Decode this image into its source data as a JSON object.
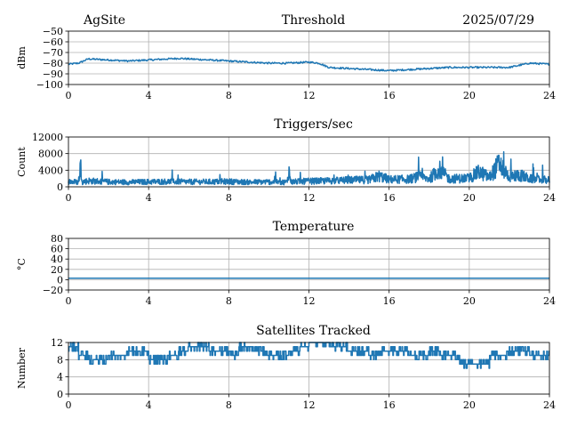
{
  "header": {
    "site": "AgSite",
    "date": "2025/07/29"
  },
  "colors": {
    "line": "#1f77b4",
    "grid": "#b0b0b0"
  },
  "chart_data": [
    {
      "type": "line",
      "title": "Threshold",
      "ylabel": "dBm",
      "xlim": [
        0,
        24
      ],
      "ylim": [
        -100,
        -50
      ],
      "xticks": [
        0,
        4,
        8,
        12,
        16,
        20,
        24
      ],
      "yticks": [
        -100,
        -90,
        -80,
        -70,
        -60,
        -50
      ],
      "ytick_labels": [
        "−100",
        "−90",
        "−80",
        "−70",
        "−60",
        "−50"
      ],
      "grid": true,
      "series": [
        {
          "x": [
            0,
            0.5,
            1,
            2,
            3,
            4,
            5,
            5.5,
            6,
            7,
            8,
            9,
            10,
            11,
            12,
            12.5,
            13,
            14,
            15,
            16,
            17,
            18,
            19,
            20,
            21,
            22,
            23,
            24
          ],
          "y": [
            -81,
            -80,
            -76,
            -77,
            -78,
            -77,
            -76,
            -75.5,
            -76,
            -77,
            -78,
            -79,
            -80,
            -80,
            -79,
            -80,
            -84,
            -85,
            -86,
            -87,
            -86,
            -85,
            -84,
            -84,
            -84,
            -84,
            -80,
            -81
          ]
        }
      ]
    },
    {
      "type": "line",
      "title": "Triggers/sec",
      "ylabel": "Count",
      "xlim": [
        0,
        24
      ],
      "ylim": [
        0,
        12000
      ],
      "xticks": [
        0,
        4,
        8,
        12,
        16,
        20,
        24
      ],
      "yticks": [
        0,
        4000,
        8000,
        12000
      ],
      "ytick_labels": [
        "0",
        "4000",
        "8000",
        "12000"
      ],
      "grid": true,
      "series": [
        {
          "x": [
            0,
            0.5,
            0.6,
            0.7,
            1,
            2,
            3,
            4,
            5,
            6,
            7,
            8,
            9,
            10,
            10.9,
            11,
            11.1,
            12,
            13,
            14,
            15,
            15.5,
            16,
            17,
            17.5,
            18,
            18.5,
            19,
            20,
            20.5,
            21,
            21.5,
            22,
            22.5,
            23,
            24
          ],
          "y": [
            1600,
            1400,
            6500,
            1500,
            1800,
            1500,
            1400,
            1500,
            1600,
            1500,
            1500,
            1600,
            1400,
            1500,
            1400,
            4800,
            1500,
            1700,
            1800,
            2000,
            2100,
            3200,
            2200,
            2300,
            3000,
            2400,
            5200,
            2400,
            2600,
            4500,
            2800,
            7000,
            2900,
            3600,
            2400,
            2000
          ],
          "noise_amplitude": 900
        }
      ]
    },
    {
      "type": "line",
      "title": "Temperature",
      "ylabel": "°C",
      "xlim": [
        0,
        24
      ],
      "ylim": [
        -20,
        80
      ],
      "xticks": [
        0,
        4,
        8,
        12,
        16,
        20,
        24
      ],
      "yticks": [
        -20,
        0,
        20,
        40,
        60,
        80
      ],
      "ytick_labels": [
        "−20",
        "0",
        "20",
        "40",
        "60",
        "80"
      ],
      "grid": true,
      "series": [
        {
          "x": [
            0,
            24
          ],
          "y": [
            3,
            3
          ]
        }
      ]
    },
    {
      "type": "line",
      "title": "Satellites Tracked",
      "ylabel": "Number",
      "xlim": [
        0,
        24
      ],
      "ylim": [
        0,
        12
      ],
      "xticks": [
        0,
        4,
        8,
        12,
        16,
        20,
        24
      ],
      "yticks": [
        0,
        4,
        8,
        12
      ],
      "ytick_labels": [
        "0",
        "4",
        "8",
        "12"
      ],
      "grid": true,
      "series": [
        {
          "x": [
            0,
            0.5,
            1,
            2,
            3,
            4,
            5,
            5.5,
            6,
            7,
            8,
            8.5,
            9,
            10,
            11,
            11.5,
            12,
            13,
            14,
            15,
            15.5,
            16,
            17,
            18,
            18.5,
            19,
            19.5,
            20,
            21,
            22,
            23,
            24
          ],
          "y": [
            11,
            9,
            8,
            9,
            10,
            8,
            9,
            10,
            11,
            10,
            9,
            11,
            10,
            9,
            10,
            11,
            12,
            11,
            10,
            9,
            10,
            10,
            9,
            10,
            9,
            9,
            7,
            7,
            9,
            10,
            9,
            10
          ],
          "step": true
        }
      ]
    }
  ]
}
